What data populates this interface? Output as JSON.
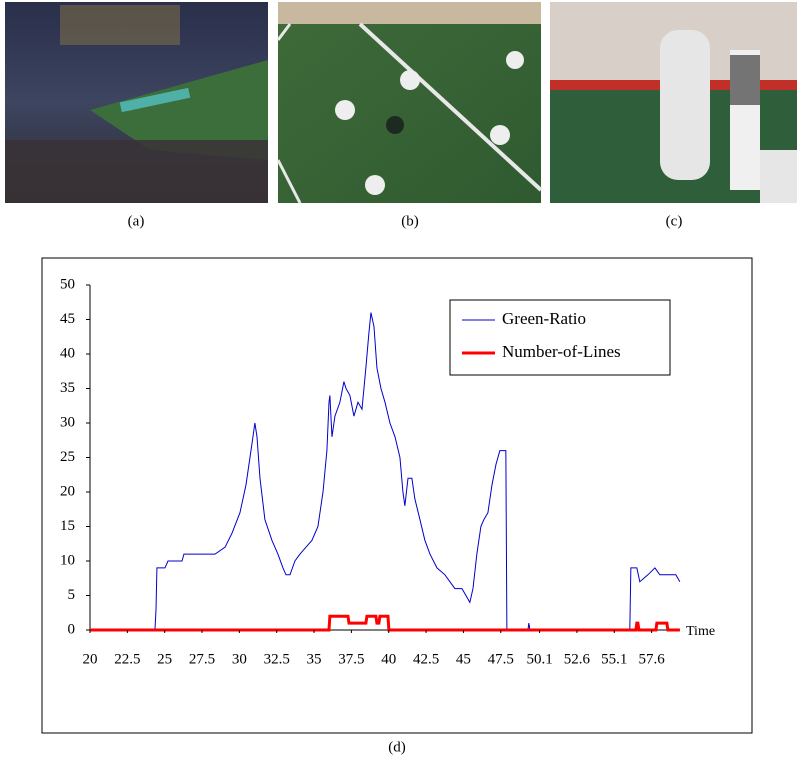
{
  "captions": {
    "a": "(a)",
    "b": "(b)",
    "c": "(c)",
    "d": "(d)"
  },
  "chart_data": {
    "type": "line",
    "xlabel": "Time",
    "xlim": [
      20,
      59.5
    ],
    "xticks": [
      20,
      22.5,
      25,
      27.5,
      30,
      32.5,
      35,
      37.5,
      40,
      42.5,
      45,
      47.5,
      50.1,
      52.6,
      55.1,
      57.6
    ],
    "ylim": [
      0,
      50
    ],
    "yticks": [
      0,
      5,
      10,
      15,
      20,
      25,
      30,
      35,
      40,
      45,
      50
    ],
    "grid": false,
    "legend": "top-right",
    "series": [
      {
        "name": "Green-Ratio",
        "color": "#0000cc",
        "x": [
          20.0,
          24.35,
          24.42,
          24.48,
          25.02,
          25.22,
          26.16,
          26.29,
          27.36,
          28.37,
          29.04,
          29.5,
          30.04,
          30.44,
          30.71,
          30.91,
          31.04,
          31.18,
          31.38,
          31.71,
          32.18,
          32.58,
          32.92,
          33.12,
          33.39,
          33.72,
          34.06,
          34.46,
          34.86,
          35.26,
          35.6,
          35.86,
          36.0,
          36.06,
          36.2,
          36.4,
          36.73,
          37.0,
          37.14,
          37.4,
          37.67,
          37.94,
          38.21,
          38.47,
          38.67,
          38.81,
          39.01,
          39.21,
          39.48,
          39.75,
          40.08,
          40.42,
          40.75,
          40.95,
          41.08,
          41.29,
          41.55,
          41.75,
          42.09,
          42.42,
          42.76,
          43.23,
          43.76,
          44.43,
          44.9,
          45.17,
          45.43,
          45.64,
          45.9,
          46.17,
          46.37,
          46.64,
          46.91,
          47.18,
          47.44,
          47.84,
          47.91,
          49.32,
          49.38,
          49.45,
          56.14,
          56.21,
          56.61,
          56.81,
          57.35,
          57.82,
          58.15,
          59.22,
          59.49
        ],
        "values": [
          0,
          0,
          3,
          9,
          9,
          10,
          10,
          11,
          11,
          11,
          12,
          14,
          17,
          21,
          25,
          28,
          30,
          28,
          22,
          16,
          13,
          11,
          9,
          8,
          8,
          10,
          11,
          12,
          13,
          15,
          20,
          26,
          33,
          34,
          28,
          31,
          33,
          36,
          35,
          34,
          31,
          33,
          32,
          38,
          43,
          46,
          44,
          38,
          35,
          33,
          30,
          28,
          25,
          20,
          18,
          22,
          22,
          19,
          16,
          13,
          11,
          9,
          8,
          6,
          6,
          5,
          4,
          6,
          11,
          15,
          16,
          17,
          21,
          24,
          26,
          26,
          0,
          0,
          1,
          0,
          0,
          9,
          9,
          7,
          8,
          9,
          8,
          8,
          7
        ]
      },
      {
        "name": "Number-of-Lines",
        "color": "#ff0000",
        "x": [
          20.0,
          36.0,
          36.06,
          37.27,
          37.34,
          38.47,
          38.54,
          39.14,
          39.21,
          39.34,
          39.41,
          39.95,
          40.01,
          56.55,
          56.61,
          56.68,
          56.75,
          57.89,
          57.95,
          58.62,
          58.69,
          59.49
        ],
        "values": [
          0,
          0,
          2,
          2,
          1,
          1,
          2,
          2,
          1,
          1,
          2,
          2,
          0,
          0,
          1,
          1,
          0,
          0,
          1,
          1,
          0,
          0
        ]
      }
    ]
  }
}
